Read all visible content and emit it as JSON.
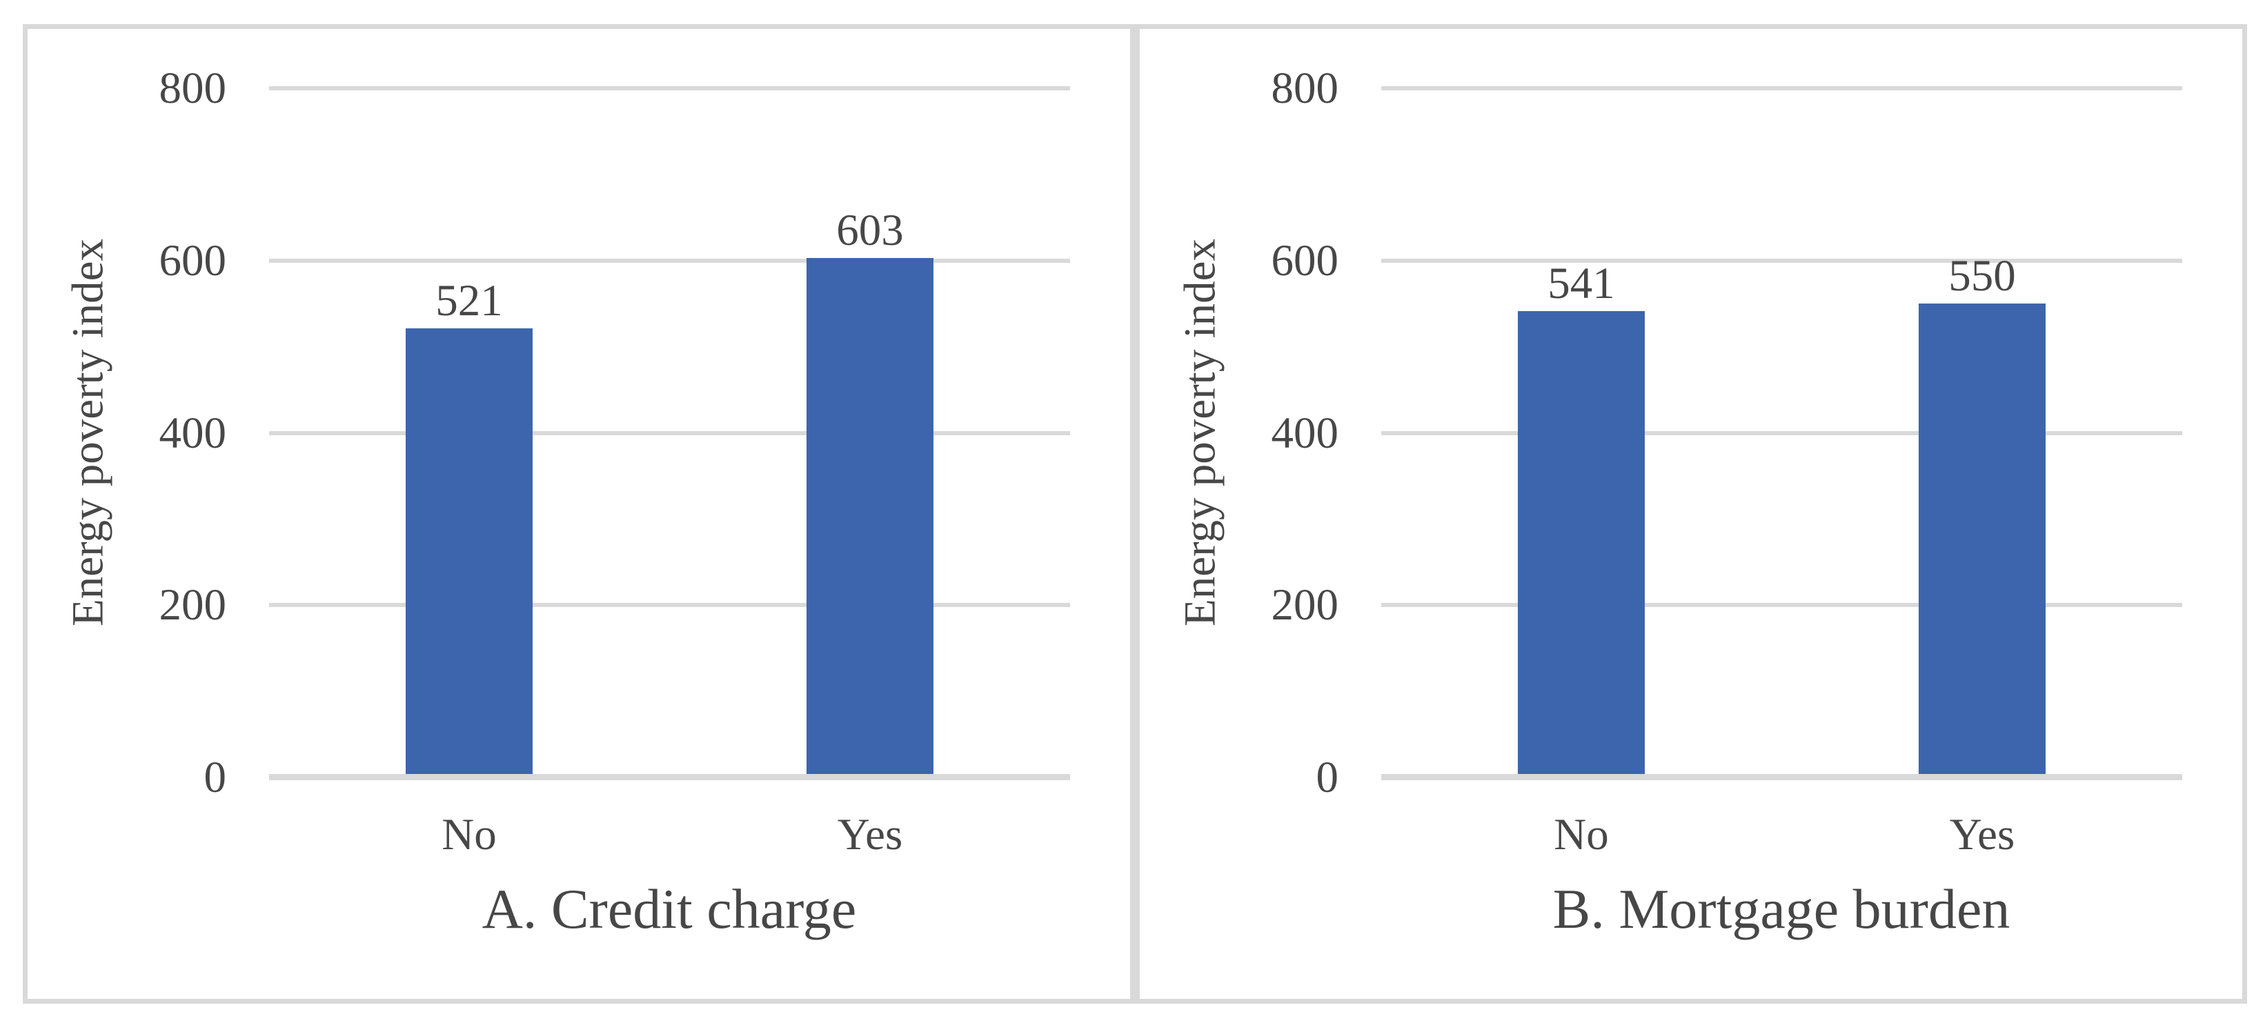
{
  "colors": {
    "bar": "#3D65AD",
    "gridline": "#D9D9D9",
    "axis_line": "#D9D9D9",
    "panel_border": "#D9D9D9",
    "text": "#474747"
  },
  "chart_data": [
    {
      "type": "bar",
      "title": "A. Credit charge",
      "ylabel": "Energy poverty index",
      "categories": [
        "No",
        "Yes"
      ],
      "values": [
        521,
        603
      ],
      "data_labels": [
        "521",
        "603"
      ],
      "yticks": [
        "0",
        "200",
        "400",
        "600",
        "800"
      ],
      "ytick_values": [
        0,
        200,
        400,
        600,
        800
      ],
      "ylim": [
        0,
        800
      ],
      "grid": true,
      "legend": false,
      "bar_color": "#3D65AD"
    },
    {
      "type": "bar",
      "title": "B. Mortgage burden",
      "ylabel": "Energy poverty index",
      "categories": [
        "No",
        "Yes"
      ],
      "values": [
        541,
        550
      ],
      "data_labels": [
        "541",
        "550"
      ],
      "yticks": [
        "0",
        "200",
        "400",
        "600",
        "800"
      ],
      "ytick_values": [
        0,
        200,
        400,
        600,
        800
      ],
      "ylim": [
        0,
        800
      ],
      "grid": true,
      "legend": false,
      "bar_color": "#3D65AD"
    }
  ]
}
